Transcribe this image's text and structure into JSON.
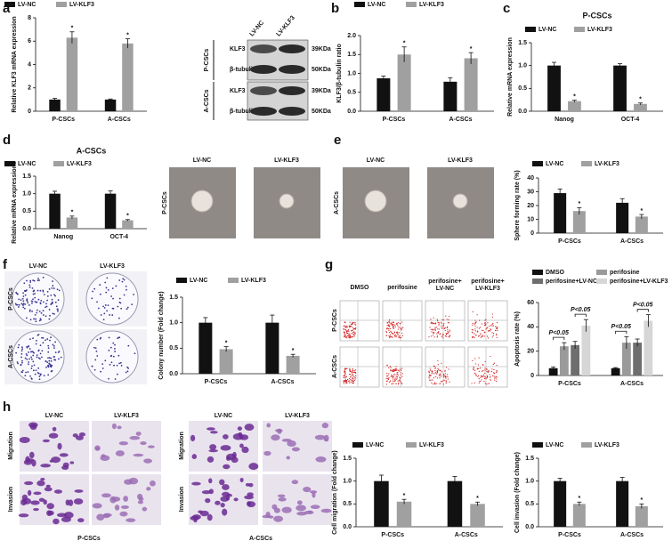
{
  "panel_labels": [
    "a",
    "b",
    "c",
    "d",
    "e",
    "f",
    "g",
    "h"
  ],
  "blot": {
    "lanes": [
      "LV-NC",
      "LV-KLF3"
    ],
    "groups": [
      "P-CSCs",
      "A-CSCs"
    ],
    "proteins": [
      "KLF3",
      "β-tubulin"
    ],
    "sizes": [
      "39KDa",
      "50KDa"
    ]
  },
  "sphere_images": {
    "columns": [
      "LV-NC",
      "LV-KLF3",
      "LV-NC",
      "LV-KLF3"
    ],
    "rows": [
      "P-CSCs",
      "A-CSCs"
    ]
  },
  "colony_images": {
    "columns": [
      "LV-NC",
      "LV-KLF3"
    ],
    "rows": [
      "P-CSCs",
      "A-CSCs"
    ]
  },
  "flow_images": {
    "columns": [
      "DMSO",
      "perifosine",
      "perifosine+ LV-NC",
      "perifosine+ LV-KLF3"
    ],
    "rows": [
      "P-CSCs",
      "A-CSCs"
    ]
  },
  "transwell_images": {
    "columns": [
      "LV-NC",
      "LV-KLF3",
      "LV-NC",
      "LV-KLF3"
    ],
    "rows": [
      "Migration",
      "Invasion"
    ],
    "groups": [
      "P-CSCs",
      "A-CSCs"
    ]
  },
  "chart_data": [
    {
      "type": "bar",
      "y_label": "Relative KLF3 mRNA expression",
      "categories": [
        "P-CSCs",
        "A-CSCs"
      ],
      "series": [
        {
          "name": "LV-NC",
          "color": "#111111",
          "values": [
            1.0,
            1.0
          ],
          "errors": [
            0.1,
            0.05
          ]
        },
        {
          "name": "LV-KLF3",
          "color": "#a0a0a0",
          "values": [
            6.3,
            5.8
          ],
          "errors": [
            0.5,
            0.4
          ],
          "annotations": [
            "*",
            "*"
          ]
        }
      ],
      "ylim": [
        0,
        8
      ],
      "yticks": [
        0,
        2,
        4,
        6,
        8
      ]
    },
    {
      "type": "bar",
      "y_label": "KLF3/β-tubulin ratio",
      "categories": [
        "P-CSCs",
        "A-CSCs"
      ],
      "series": [
        {
          "name": "LV-NC",
          "color": "#111111",
          "values": [
            0.87,
            0.78
          ],
          "errors": [
            0.06,
            0.1
          ]
        },
        {
          "name": "LV-KLF3",
          "color": "#a0a0a0",
          "values": [
            1.5,
            1.4
          ],
          "errors": [
            0.2,
            0.15
          ],
          "annotations": [
            "*",
            "*"
          ]
        }
      ],
      "ylim": [
        0,
        2
      ],
      "yticks": [
        {
          "value": 0,
          "label": "0.0"
        },
        {
          "value": 0.5,
          "label": "0.5"
        },
        {
          "value": 1,
          "label": "1.0"
        },
        {
          "value": 1.5,
          "label": "1.5"
        },
        {
          "value": 2,
          "label": "2.0"
        }
      ]
    },
    {
      "type": "bar",
      "title": "P-CSCs",
      "y_label": "Relative mRNA expression",
      "categories": [
        "Nanog",
        "OCT-4"
      ],
      "series": [
        {
          "name": "LV-NC",
          "color": "#111111",
          "values": [
            1.0,
            1.0
          ],
          "errors": [
            0.07,
            0.04
          ]
        },
        {
          "name": "LV-KLF3",
          "color": "#a0a0a0",
          "values": [
            0.22,
            0.16
          ],
          "errors": [
            0.02,
            0.02
          ],
          "annotations": [
            "*",
            "*"
          ]
        }
      ],
      "ylim": [
        0,
        1.5
      ],
      "yticks": [
        {
          "value": 0,
          "label": "0.0"
        },
        {
          "value": 0.5,
          "label": "0.5"
        },
        {
          "value": 1,
          "label": "1.0"
        },
        {
          "value": 1.5,
          "label": "1.5"
        }
      ]
    },
    {
      "type": "bar",
      "title": "A-CSCs",
      "y_label": "Relative mRNA expressions",
      "categories": [
        "Nanog",
        "OCT-4"
      ],
      "series": [
        {
          "name": "LV-NC",
          "color": "#111111",
          "values": [
            1.0,
            1.0
          ],
          "errors": [
            0.07,
            0.08
          ]
        },
        {
          "name": "LV-KLF3",
          "color": "#a0a0a0",
          "values": [
            0.32,
            0.24
          ],
          "errors": [
            0.04,
            0.02
          ],
          "annotations": [
            "*",
            "*"
          ]
        }
      ],
      "ylim": [
        0,
        1.5
      ],
      "yticks": [
        {
          "value": 0,
          "label": "0.0"
        },
        {
          "value": 0.5,
          "label": "0.5"
        },
        {
          "value": 1,
          "label": "1.0"
        },
        {
          "value": 1.5,
          "label": "1.5"
        }
      ]
    },
    {
      "type": "bar",
      "y_label": "Sphere forming rate (%)",
      "categories": [
        "P-CSCs",
        "A-CSCs"
      ],
      "series": [
        {
          "name": "LV-NC",
          "color": "#111111",
          "values": [
            29,
            22
          ],
          "errors": [
            3,
            3
          ]
        },
        {
          "name": "LV-KLF3",
          "color": "#a0a0a0",
          "values": [
            16,
            12
          ],
          "errors": [
            2.5,
            1.5
          ],
          "annotations": [
            "*",
            "*"
          ]
        }
      ],
      "ylim": [
        0,
        40
      ],
      "yticks": [
        0,
        10,
        20,
        30,
        40
      ]
    },
    {
      "type": "bar",
      "y_label": "Colony number (Fold change)",
      "categories": [
        "P-CSCs",
        "A-CSCs"
      ],
      "series": [
        {
          "name": "LV-NC",
          "color": "#111111",
          "values": [
            1.0,
            1.0
          ],
          "errors": [
            0.1,
            0.15
          ]
        },
        {
          "name": "LV-KLF3",
          "color": "#a0a0a0",
          "values": [
            0.48,
            0.35
          ],
          "errors": [
            0.05,
            0.03
          ],
          "annotations": [
            "*",
            "*"
          ]
        }
      ],
      "ylim": [
        0,
        1.5
      ],
      "yticks": [
        {
          "value": 0,
          "label": "0.0"
        },
        {
          "value": 0.5,
          "label": "0.5"
        },
        {
          "value": 1,
          "label": "1.0"
        },
        {
          "value": 1.5,
          "label": "1.5"
        }
      ]
    },
    {
      "type": "bar",
      "y_label": "Apoptosis rate (%)",
      "categories": [
        "P-CSCs",
        "A-CSCs"
      ],
      "series": [
        {
          "name": "DMSO",
          "color": "#111111",
          "values": [
            6,
            6
          ],
          "errors": [
            1,
            0.5
          ]
        },
        {
          "name": "perifosine",
          "color": "#9a9a9a",
          "values": [
            24,
            27
          ],
          "errors": [
            3,
            5
          ],
          "annotations": [
            "P<0.05",
            "P<0.05"
          ]
        },
        {
          "name": "perifosine+LV-NC",
          "color": "#6e6e6e",
          "values": [
            25,
            27
          ],
          "errors": [
            3,
            3
          ]
        },
        {
          "name": "perifosine+LV-KLF3",
          "color": "#d6d6d6",
          "values": [
            41,
            45
          ],
          "errors": [
            5,
            5
          ],
          "annotations": [
            "P<0.05",
            "P<0.05"
          ]
        }
      ],
      "ylim": [
        0,
        60
      ],
      "yticks": [
        0,
        20,
        40,
        60
      ]
    },
    {
      "type": "bar",
      "y_label": "Cell migration (Fold change)",
      "categories": [
        "P-CSCs",
        "A-CSCs"
      ],
      "series": [
        {
          "name": "LV-NC",
          "color": "#111111",
          "values": [
            1.0,
            1.0
          ],
          "errors": [
            0.13,
            0.1
          ]
        },
        {
          "name": "LV-KLF3",
          "color": "#a0a0a0",
          "values": [
            0.55,
            0.5
          ],
          "errors": [
            0.05,
            0.04
          ],
          "annotations": [
            "*",
            "*"
          ]
        }
      ],
      "ylim": [
        0,
        1.5
      ],
      "yticks": [
        {
          "value": 0,
          "label": "0.0"
        },
        {
          "value": 0.5,
          "label": "0.5"
        },
        {
          "value": 1,
          "label": "1.0"
        },
        {
          "value": 1.5,
          "label": "1.5"
        }
      ]
    },
    {
      "type": "bar",
      "y_label": "Cell invasion (Fold change)",
      "categories": [
        "P-CSCs",
        "A-CSCs"
      ],
      "series": [
        {
          "name": "LV-NC",
          "color": "#111111",
          "values": [
            1.0,
            1.0
          ],
          "errors": [
            0.06,
            0.08
          ]
        },
        {
          "name": "LV-KLF3",
          "color": "#a0a0a0",
          "values": [
            0.5,
            0.45
          ],
          "errors": [
            0.04,
            0.05
          ],
          "annotations": [
            "*",
            "*"
          ]
        }
      ],
      "ylim": [
        0,
        1.5
      ],
      "yticks": [
        {
          "value": 0,
          "label": "0.0"
        },
        {
          "value": 0.5,
          "label": "0.5"
        },
        {
          "value": 1,
          "label": "1.0"
        },
        {
          "value": 1.5,
          "label": "1.5"
        }
      ]
    }
  ]
}
